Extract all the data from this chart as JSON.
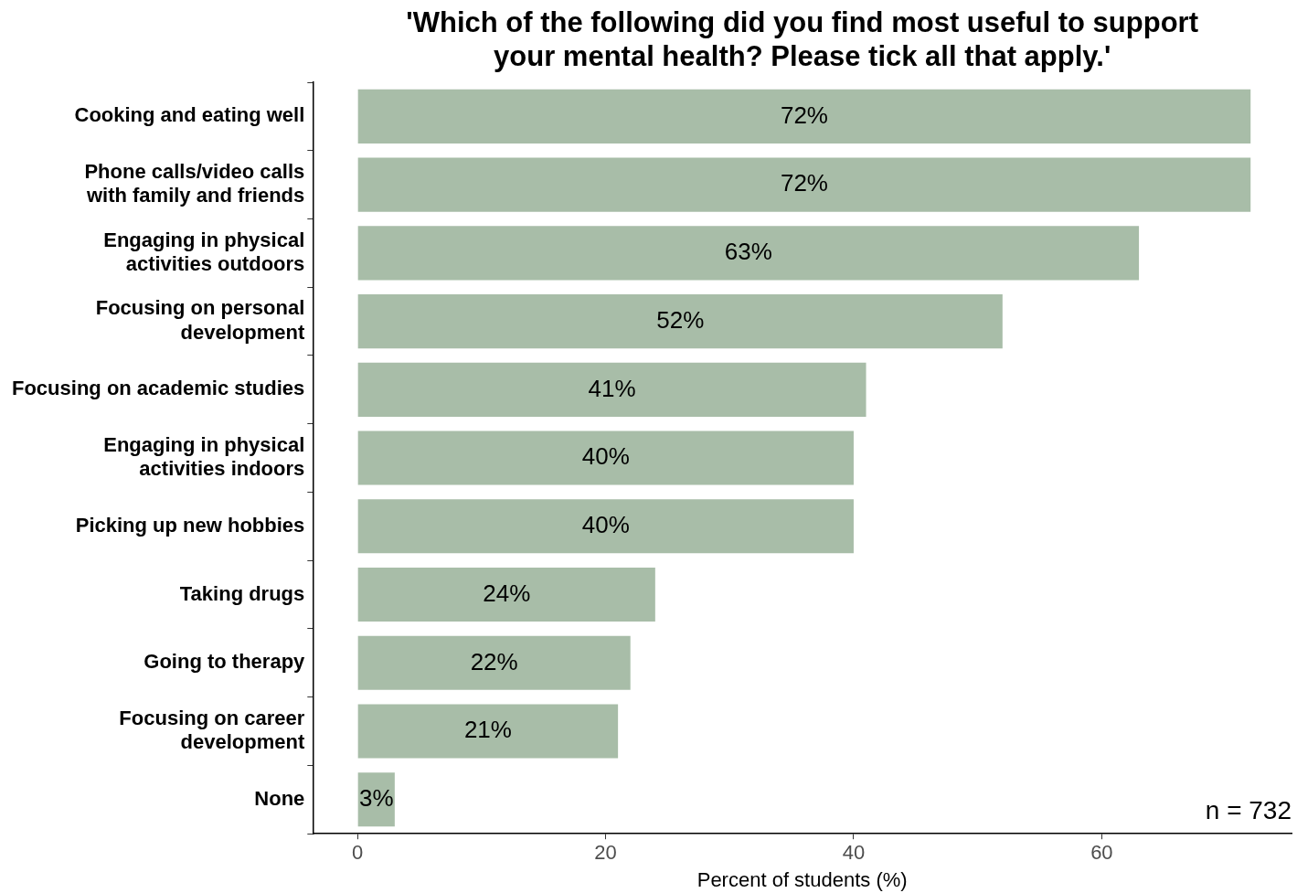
{
  "chart_data": {
    "type": "bar",
    "orientation": "horizontal",
    "title": "'Which of the following did you find most useful to support\nyour mental health? Please tick all that apply.'",
    "xlabel": "Percent of students (%)",
    "categories": [
      "Cooking and eating well",
      "Phone calls/video calls\nwith family and friends",
      "Engaging in physical\nactivities outdoors",
      "Focusing on personal\ndevelopment",
      "Focusing on academic studies",
      "Engaging in physical\nactivities indoors",
      "Picking up new hobbies",
      "Taking drugs",
      "Going to therapy",
      "Focusing on career\ndevelopment",
      "None"
    ],
    "values": [
      72,
      72,
      63,
      52,
      41,
      40,
      40,
      24,
      22,
      21,
      3
    ],
    "value_labels": [
      "72%",
      "72%",
      "63%",
      "52%",
      "41%",
      "40%",
      "40%",
      "24%",
      "22%",
      "21%",
      "3%"
    ],
    "color": "#a8bda8",
    "xlim": [
      -3.6,
      75.3
    ],
    "xticks": [
      0,
      20,
      40,
      60
    ],
    "grid": false,
    "legend": false,
    "annotations": [
      "n = 732"
    ]
  }
}
